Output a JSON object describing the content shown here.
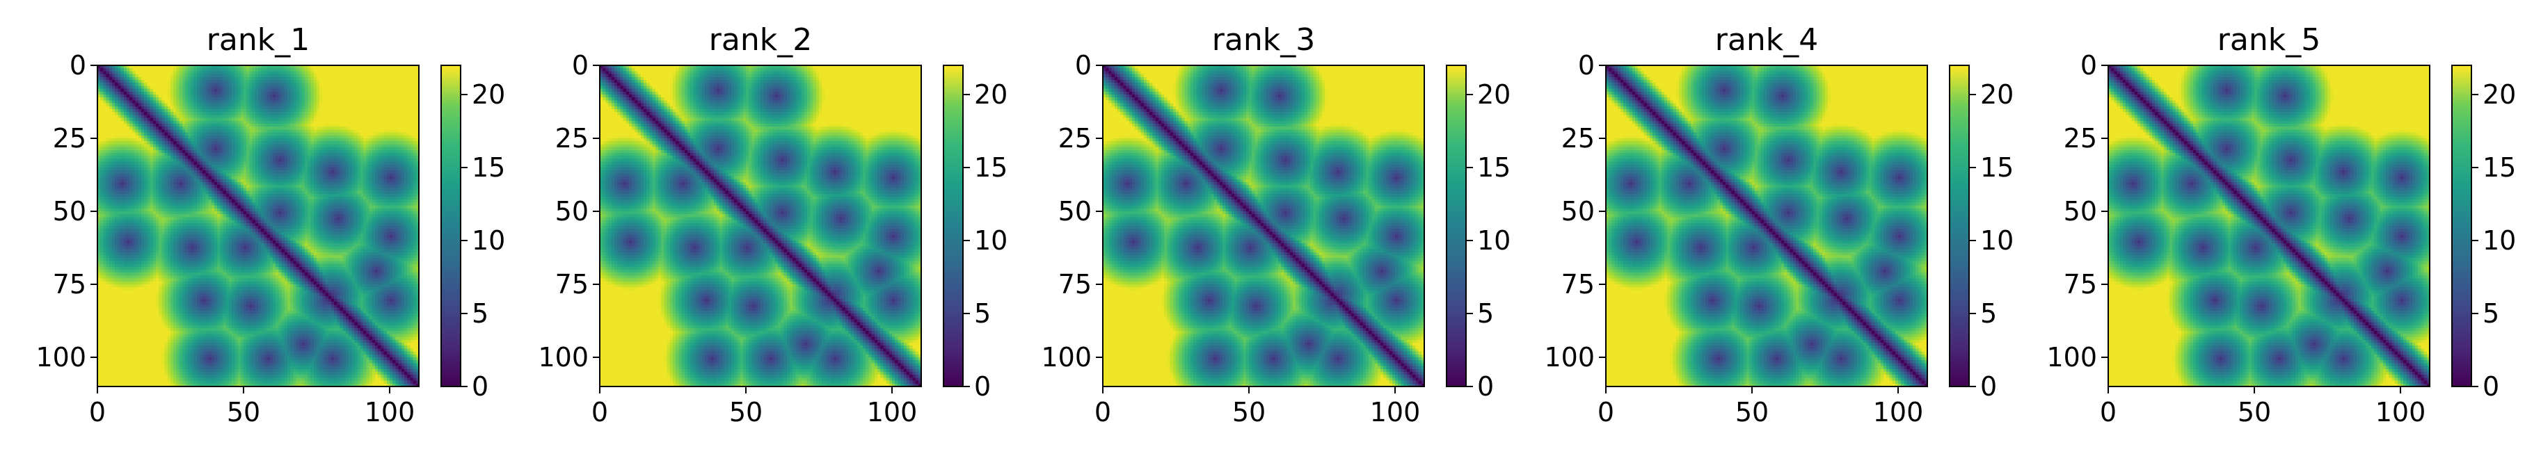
{
  "chart_data": [
    {
      "type": "heatmap",
      "title": "rank_1",
      "xlabel": "",
      "ylabel": "",
      "x_ticks": [
        0,
        50,
        100
      ],
      "y_ticks": [
        0,
        25,
        50,
        75,
        100
      ],
      "xlim": [
        0,
        110
      ],
      "ylim": [
        110,
        0
      ],
      "colorbar": {
        "ticks": [
          0,
          5,
          10,
          15,
          20
        ],
        "range": [
          0,
          22
        ],
        "colormap": "viridis"
      },
      "size": 110
    },
    {
      "type": "heatmap",
      "title": "rank_2",
      "xlabel": "",
      "ylabel": "",
      "x_ticks": [
        0,
        50,
        100
      ],
      "y_ticks": [
        0,
        25,
        50,
        75,
        100
      ],
      "xlim": [
        0,
        110
      ],
      "ylim": [
        110,
        0
      ],
      "colorbar": {
        "ticks": [
          0,
          5,
          10,
          15,
          20
        ],
        "range": [
          0,
          22
        ],
        "colormap": "viridis"
      },
      "size": 110
    },
    {
      "type": "heatmap",
      "title": "rank_3",
      "xlabel": "",
      "ylabel": "",
      "x_ticks": [
        0,
        50,
        100
      ],
      "y_ticks": [
        0,
        25,
        50,
        75,
        100
      ],
      "xlim": [
        0,
        110
      ],
      "ylim": [
        110,
        0
      ],
      "colorbar": {
        "ticks": [
          0,
          5,
          10,
          15,
          20
        ],
        "range": [
          0,
          22
        ],
        "colormap": "viridis"
      },
      "size": 110
    },
    {
      "type": "heatmap",
      "title": "rank_4",
      "xlabel": "",
      "ylabel": "",
      "x_ticks": [
        0,
        50,
        100
      ],
      "y_ticks": [
        0,
        25,
        50,
        75,
        100
      ],
      "xlim": [
        0,
        110
      ],
      "ylim": [
        110,
        0
      ],
      "colorbar": {
        "ticks": [
          0,
          5,
          10,
          15,
          20
        ],
        "range": [
          0,
          22
        ],
        "colormap": "viridis"
      },
      "size": 110
    },
    {
      "type": "heatmap",
      "title": "rank_5",
      "xlabel": "",
      "ylabel": "",
      "x_ticks": [
        0,
        50,
        100
      ],
      "y_ticks": [
        0,
        25,
        50,
        75,
        100
      ],
      "xlim": [
        0,
        110
      ],
      "ylim": [
        110,
        0
      ],
      "colorbar": {
        "ticks": [
          0,
          5,
          10,
          15,
          20
        ],
        "range": [
          0,
          22
        ],
        "colormap": "viridis"
      },
      "size": 110
    }
  ],
  "colors": {
    "viridis_low": "#440154",
    "viridis_mid": "#21918c",
    "viridis_high": "#fde725"
  }
}
